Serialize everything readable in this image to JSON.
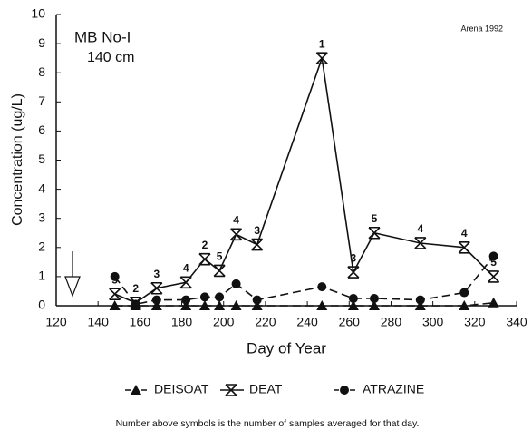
{
  "chart_data": {
    "type": "line",
    "title": "MB No-I",
    "subtitle": "140 cm",
    "source": "Arena 1992",
    "xlabel": "Day of Year",
    "ylabel": "Concentration (ug/L)",
    "note": "Number above symbols is the number of samples averaged for that day.",
    "x": [
      148,
      158,
      168,
      182,
      191,
      198,
      206,
      216,
      247,
      262,
      272,
      294,
      315,
      329
    ],
    "series": [
      {
        "name": "DEISOAT",
        "color": "#111111",
        "marker": "triangle",
        "dashed": true,
        "values": [
          0,
          0,
          0,
          0,
          0,
          0,
          0,
          0,
          0,
          0,
          0,
          0,
          0,
          0.1
        ]
      },
      {
        "name": "DEAT",
        "color": "#111111",
        "marker": "hourglass",
        "dashed": false,
        "values": [
          0.4,
          0.1,
          0.6,
          0.8,
          1.6,
          1.2,
          2.45,
          2.1,
          8.5,
          1.15,
          2.5,
          2.15,
          2.0,
          1.0
        ],
        "sample_counts": [
          5,
          2,
          3,
          4,
          2,
          5,
          4,
          3,
          1,
          3,
          5,
          4,
          4,
          5
        ]
      },
      {
        "name": "ATRAZINE",
        "color": "#111111",
        "marker": "circle",
        "dashed": true,
        "values": [
          1.0,
          0.05,
          0.2,
          0.2,
          0.3,
          0.3,
          0.75,
          0.2,
          0.65,
          0.25,
          0.25,
          0.2,
          0.45,
          1.7
        ]
      }
    ],
    "xlim": [
      120,
      340
    ],
    "xticks": [
      120,
      140,
      160,
      180,
      200,
      220,
      240,
      260,
      280,
      300,
      320,
      340
    ],
    "ylim": [
      0,
      10
    ],
    "yticks": [
      0,
      1,
      2,
      3,
      4,
      5,
      6,
      7,
      8,
      9,
      10
    ],
    "grid": false
  }
}
